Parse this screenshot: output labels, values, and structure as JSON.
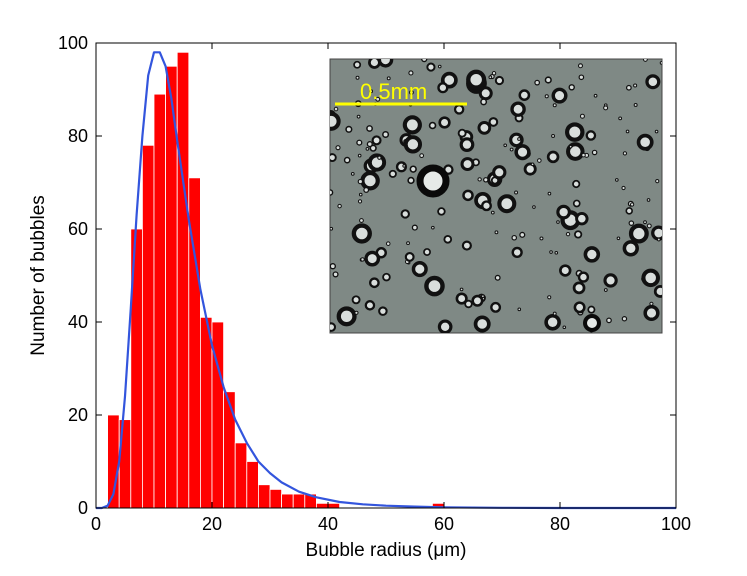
{
  "chart_data": {
    "type": "bar",
    "title": "",
    "xlabel": "Bubble radius (μm)",
    "ylabel": "Number of bubbles",
    "xlim": [
      0,
      100
    ],
    "ylim": [
      0,
      100
    ],
    "xticks": [
      0,
      20,
      40,
      60,
      80,
      100
    ],
    "yticks": [
      0,
      20,
      40,
      60,
      80,
      100
    ],
    "grid": false,
    "bin_width": 2,
    "bar_color": "#ff0000",
    "curve_color": "#3355dd",
    "histogram": {
      "bin_starts": [
        2,
        4,
        6,
        8,
        10,
        12,
        14,
        16,
        18,
        20,
        22,
        24,
        26,
        28,
        30,
        32,
        34,
        36,
        38,
        40,
        58
      ],
      "counts": [
        20,
        19,
        60,
        78,
        89,
        95,
        98,
        71,
        41,
        40,
        25,
        14,
        10,
        5,
        4,
        3,
        3,
        3,
        1,
        1,
        1
      ]
    },
    "fit_curve": {
      "x": [
        0,
        1,
        2,
        3,
        4,
        5,
        6,
        7,
        8,
        9,
        10,
        11,
        12,
        13,
        14,
        16,
        18,
        20,
        22,
        24,
        26,
        28,
        30,
        32,
        35,
        38,
        42,
        46,
        50,
        55,
        60,
        70,
        80,
        90,
        100
      ],
      "y": [
        0,
        0,
        0.5,
        3,
        10,
        24,
        43,
        63,
        80,
        93,
        98,
        98,
        95,
        88,
        79,
        62,
        47,
        35,
        26,
        19,
        14,
        10,
        7.5,
        5.5,
        3.5,
        2.3,
        1.3,
        0.8,
        0.5,
        0.3,
        0.15,
        0.05,
        0,
        0,
        0
      ]
    },
    "inset": {
      "scale_bar_label": "0.5mm",
      "background_color": "#7f8985",
      "scale_bar_color": "#ffff00"
    }
  }
}
